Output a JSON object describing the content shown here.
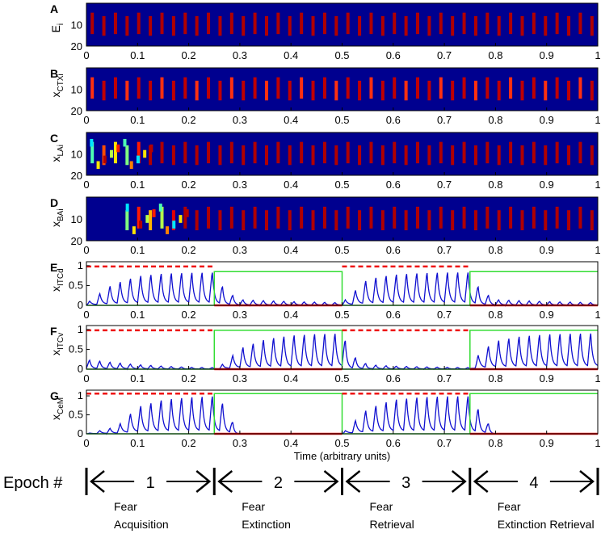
{
  "chart_data": [
    {
      "panel": "A",
      "type": "heatmap",
      "ylabel": "E",
      "ylabel_sub": "i",
      "yticks": [
        10,
        20
      ],
      "xlim": [
        0,
        1
      ],
      "xticks": [
        "0",
        "0.1",
        "0.2",
        "0.3",
        "0.4",
        "0.5",
        "0.6",
        "0.7",
        "0.8",
        "0.9",
        "1"
      ],
      "colormap": "jet",
      "onset": 0.0,
      "transient": false
    },
    {
      "panel": "B",
      "type": "heatmap",
      "ylabel": "x",
      "ylabel_sub": "CTXi",
      "yticks": [
        10,
        20
      ],
      "xlim": [
        0,
        1
      ],
      "xticks": [
        "0",
        "0.1",
        "0.2",
        "0.3",
        "0.4",
        "0.5",
        "0.6",
        "0.7",
        "0.8",
        "0.9",
        "1"
      ],
      "colormap": "jet",
      "onset": 0.0,
      "transient": false
    },
    {
      "panel": "C",
      "type": "heatmap",
      "ylabel": "x",
      "ylabel_sub": "LAi",
      "yticks": [
        10,
        20
      ],
      "xlim": [
        0,
        1
      ],
      "xticks": [
        "0",
        "0.1",
        "0.2",
        "0.3",
        "0.4",
        "0.5",
        "0.6",
        "0.7",
        "0.8",
        "0.9",
        "1"
      ],
      "colormap": "jet",
      "onset": 0.0,
      "transient": true
    },
    {
      "panel": "D",
      "type": "heatmap",
      "ylabel": "x",
      "ylabel_sub": "BAi",
      "yticks": [
        10,
        20
      ],
      "xlim": [
        0,
        1
      ],
      "xticks": [
        "0",
        "0.1",
        "0.2",
        "0.3",
        "0.4",
        "0.5",
        "0.6",
        "0.7",
        "0.8",
        "0.9",
        "1"
      ],
      "colormap": "jet",
      "onset": 0.07,
      "transient": true
    },
    {
      "panel": "E",
      "type": "line",
      "ylabel": "x",
      "ylabel_sub": "ITCd",
      "xlim": [
        0,
        1
      ],
      "ylim": [
        0,
        1.1
      ],
      "yticks": [
        "0",
        "0.5",
        "1"
      ],
      "xticks": [
        "0",
        "0.1",
        "0.2",
        "0.3",
        "0.4",
        "0.5",
        "0.6",
        "0.7",
        "0.8",
        "0.9",
        "1"
      ],
      "series": [
        {
          "role": "activity",
          "color": "#1010d0",
          "envelope": {
            "x": [
              0,
              0.05,
              0.1,
              0.15,
              0.2,
              0.25,
              0.27,
              0.3,
              0.4,
              0.5,
              0.55,
              0.6,
              0.65,
              0.7,
              0.75,
              0.77,
              0.8,
              0.9,
              1.0
            ],
            "y": [
              0.05,
              0.55,
              0.78,
              0.85,
              0.87,
              0.88,
              0.4,
              0.15,
              0.1,
              0.07,
              0.7,
              0.82,
              0.86,
              0.88,
              0.88,
              0.4,
              0.15,
              0.1,
              0.07
            ]
          }
        },
        {
          "role": "green-step",
          "color": "#33dd33",
          "x": [
            0,
            0.25,
            0.25,
            0.5,
            0.5,
            0.75,
            0.75,
            1.0
          ],
          "y": [
            0,
            0,
            0.85,
            0.85,
            0,
            0,
            0.85,
            0.85
          ]
        },
        {
          "role": "red-dashed",
          "color": "#ee1111",
          "dashed": true,
          "x": [
            [
              0,
              0.25
            ],
            [
              0.5,
              0.75
            ]
          ],
          "y": 0.98
        },
        {
          "role": "red-baseline",
          "color": "#ee1111",
          "dashed": false,
          "x": [
            [
              0.25,
              0.5
            ],
            [
              0.75,
              1.0
            ]
          ],
          "y": 0.0
        }
      ]
    },
    {
      "panel": "F",
      "type": "line",
      "ylabel": "x",
      "ylabel_sub": "ITCv",
      "xlim": [
        0,
        1
      ],
      "ylim": [
        0,
        1.1
      ],
      "yticks": [
        "0",
        "0.5",
        "1"
      ],
      "xticks": [
        "0",
        "0.1",
        "0.2",
        "0.3",
        "0.4",
        "0.5",
        "0.6",
        "0.7",
        "0.8",
        "0.9",
        "1"
      ],
      "series": [
        {
          "role": "activity",
          "color": "#1010d0",
          "envelope": {
            "x": [
              0,
              0.05,
              0.1,
              0.15,
              0.2,
              0.25,
              0.27,
              0.3,
              0.35,
              0.4,
              0.45,
              0.5,
              0.52,
              0.55,
              0.6,
              0.7,
              0.75,
              0.77,
              0.8,
              0.85,
              0.9,
              0.95,
              1.0
            ],
            "y": [
              0.25,
              0.18,
              0.12,
              0.08,
              0.05,
              0.04,
              0.15,
              0.55,
              0.8,
              0.9,
              0.94,
              0.95,
              0.35,
              0.12,
              0.08,
              0.05,
              0.04,
              0.45,
              0.75,
              0.88,
              0.93,
              0.95,
              0.96
            ]
          }
        },
        {
          "role": "green-step",
          "color": "#33dd33",
          "x": [
            0,
            0.25,
            0.25,
            0.5,
            0.5,
            0.75,
            0.75,
            1.0
          ],
          "y": [
            0,
            0,
            0.98,
            0.98,
            0,
            0,
            0.98,
            0.98
          ]
        },
        {
          "role": "red-dashed",
          "color": "#ee1111",
          "dashed": true,
          "x": [
            [
              0,
              0.25
            ],
            [
              0.5,
              0.75
            ]
          ],
          "y": 0.98
        },
        {
          "role": "red-baseline",
          "color": "#ee1111",
          "dashed": false,
          "x": [
            [
              0.25,
              0.5
            ],
            [
              0.75,
              1.0
            ]
          ],
          "y": 0.0
        }
      ]
    },
    {
      "panel": "G",
      "type": "line",
      "ylabel": "x",
      "ylabel_sub": "CeM",
      "xlim": [
        0,
        1
      ],
      "ylim": [
        0,
        1.15
      ],
      "yticks": [
        "0",
        "0.5",
        "1"
      ],
      "xlabel": "Time (arbitrary units)",
      "xticks": [
        "0",
        "0.1",
        "0.2",
        "0.3",
        "0.4",
        "0.5",
        "0.6",
        "0.7",
        "0.8",
        "0.9",
        "1"
      ],
      "series": [
        {
          "role": "activity",
          "color": "#1010d0",
          "envelope": {
            "x": [
              0,
              0.06,
              0.1,
              0.15,
              0.2,
              0.25,
              0.27,
              0.29,
              0.3,
              0.5,
              0.55,
              0.6,
              0.65,
              0.7,
              0.75,
              0.77,
              0.79,
              0.8,
              1.0
            ],
            "y": [
              0,
              0.2,
              0.75,
              0.95,
              1.02,
              1.05,
              0.8,
              0.2,
              0.0,
              0.0,
              0.7,
              0.95,
              1.02,
              1.05,
              1.05,
              0.6,
              0.2,
              0.0,
              0.0
            ]
          }
        },
        {
          "role": "green-step",
          "color": "#33dd33",
          "x": [
            0,
            0.25,
            0.25,
            0.5,
            0.5,
            0.75,
            0.75,
            1.0
          ],
          "y": [
            0,
            0,
            1.06,
            1.06,
            0,
            0,
            1.06,
            1.06
          ]
        },
        {
          "role": "red-dashed",
          "color": "#ee1111",
          "dashed": true,
          "x": [
            [
              0,
              0.25
            ],
            [
              0.5,
              0.75
            ]
          ],
          "y": 1.06
        },
        {
          "role": "red-baseline",
          "color": "#ee1111",
          "dashed": false,
          "x": [
            [
              0.25,
              0.5
            ],
            [
              0.75,
              1.0
            ]
          ],
          "y": 0.0
        }
      ]
    }
  ],
  "epochs": {
    "label": "Epoch #",
    "items": [
      {
        "number": "1",
        "line1": "Fear",
        "line2": "Acquisition"
      },
      {
        "number": "2",
        "line1": "Fear",
        "line2": "Extinction"
      },
      {
        "number": "3",
        "line1": "Fear",
        "line2": "Retrieval"
      },
      {
        "number": "4",
        "line1": "Fear",
        "line2": "Extinction Retrieval"
      }
    ]
  },
  "colors": {
    "heatmap_bg": "#00008f",
    "axis": "#000000",
    "activity": "#1010d0",
    "green": "#33dd33",
    "red": "#ee1111"
  }
}
